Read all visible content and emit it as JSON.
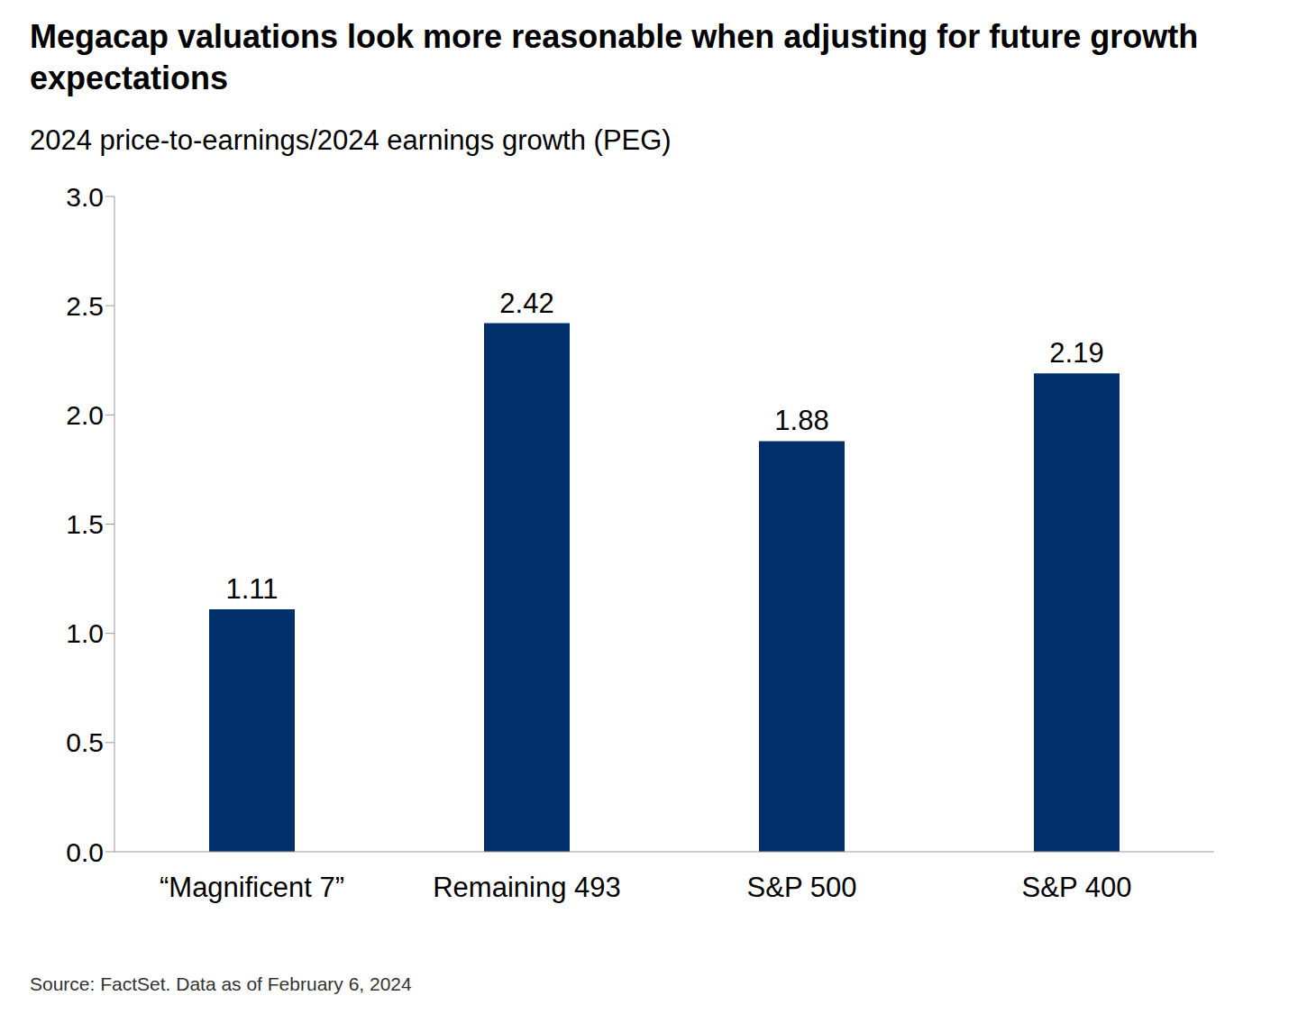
{
  "chart_data": {
    "type": "bar",
    "title": "Megacap valuations look more reasonable when adjusting for future growth expectations",
    "subtitle": "2024 price-to-earnings/2024 earnings growth (PEG)",
    "source": "Source: FactSet. Data as of February 6, 2024",
    "categories": [
      "“Magnificent 7”",
      "Remaining 493",
      "S&P 500",
      "S&P 400"
    ],
    "values": [
      1.11,
      2.42,
      1.88,
      2.19
    ],
    "color": "#002f6c",
    "ylim": [
      0,
      3
    ],
    "yticks": [
      {
        "value": 0,
        "label": "0.0"
      },
      0.5,
      {
        "value": 1,
        "label": "1.0"
      },
      1.5,
      {
        "value": 2,
        "label": "2.0"
      },
      2.5,
      {
        "value": 3,
        "label": "3.0"
      }
    ],
    "grid": false,
    "data_labels": true
  }
}
